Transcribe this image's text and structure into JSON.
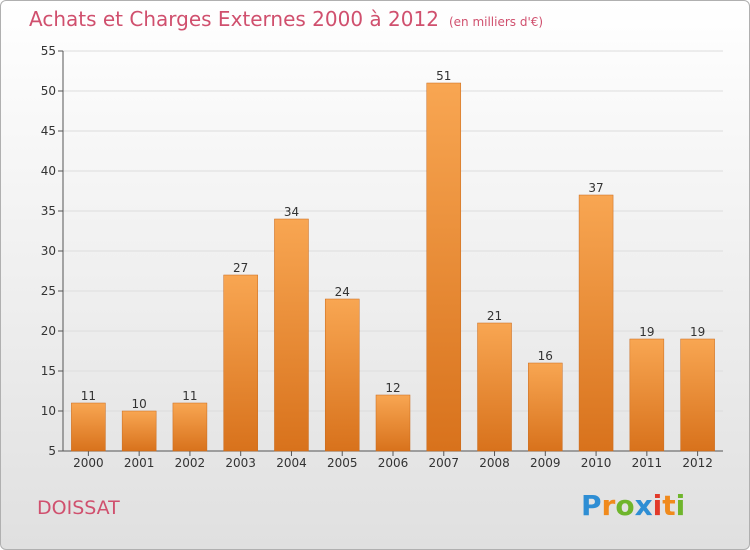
{
  "header": {
    "title": "Achats et Charges Externes 2000 à 2012",
    "unit": "(en milliers d'€)"
  },
  "footer": {
    "commune": "DOISSAT",
    "brand": "Proxiti"
  },
  "colors": {
    "title": "#d0506e",
    "bar_top": "#f8a652",
    "bar_bottom": "#d8721c",
    "brand_letters": [
      "#2e8ed4",
      "#f08a1c",
      "#6fb52c",
      "#2e8ed4",
      "#e23a2a",
      "#f08a1c",
      "#6fb52c"
    ]
  },
  "chart_data": {
    "type": "bar",
    "categories": [
      "2000",
      "2001",
      "2002",
      "2003",
      "2004",
      "2005",
      "2006",
      "2007",
      "2008",
      "2009",
      "2010",
      "2011",
      "2012"
    ],
    "values": [
      11,
      10,
      11,
      27,
      34,
      24,
      12,
      51,
      21,
      16,
      37,
      19,
      19
    ],
    "title": "Achats et Charges Externes 2000 à 2012",
    "ylim": [
      5,
      55
    ],
    "yticks": [
      5,
      10,
      15,
      20,
      25,
      30,
      35,
      40,
      45,
      50,
      55
    ],
    "grid": true,
    "data_labels": true
  }
}
